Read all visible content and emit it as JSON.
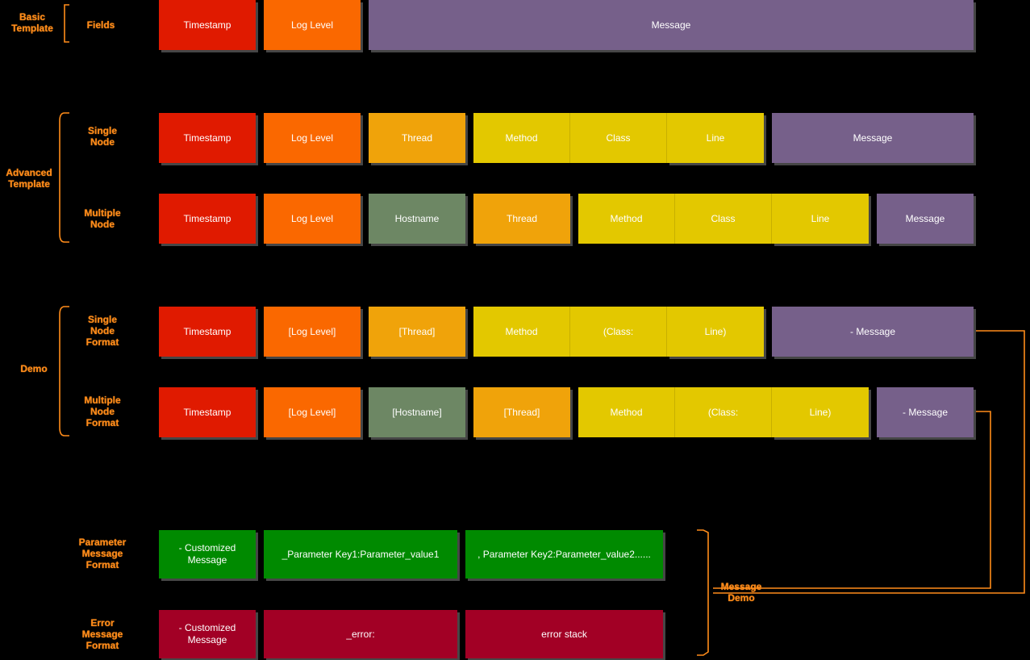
{
  "colors": {
    "timestamp": "#e01a00",
    "log_level": "#fa6800",
    "thread": "#f0a30a",
    "method": "#e3c800",
    "hostname": "#6d8764",
    "message": "#76608a",
    "param": "#008a00",
    "error": "#a20025",
    "label": "#ff8c1a"
  },
  "labels": {
    "basic_template": "Basic Template",
    "basic_fields": "Fields",
    "advanced_template": "Advanced Template",
    "single_node": "Single Node",
    "multiple_node": "Multiple Node",
    "demo": "Demo",
    "single_node_format": "Single Node Format",
    "multiple_node_format": "Multiple Node Format",
    "parameter_message_format": "Parameter Message Format",
    "error_message_format": "Error Message Format",
    "message_demo": "Message Demo"
  },
  "rows": {
    "basic": [
      "Timestamp",
      "Log Level",
      "Message"
    ],
    "adv_single": [
      "Timestamp",
      "Log Level",
      "Thread",
      "Method",
      "Class",
      "Line",
      "Message"
    ],
    "adv_multi": [
      "Timestamp",
      "Log Level",
      "Hostname",
      "Thread",
      "Method",
      "Class",
      "Line",
      "Message"
    ],
    "demo_single": [
      "Timestamp",
      "[Log Level]",
      "[Thread]",
      "Method",
      "(Class:",
      "Line)",
      "- Message"
    ],
    "demo_multi": [
      "Timestamp",
      "[Log Level]",
      "[Hostname]",
      "[Thread]",
      "Method",
      "(Class:",
      "Line)",
      "- Message"
    ],
    "param": [
      "- Customized Message",
      "_Parameter Key1:Parameter_value1",
      ", Parameter Key2:Parameter_value2......"
    ],
    "error": [
      "- Customized Message",
      "_error:",
      "error stack"
    ]
  }
}
